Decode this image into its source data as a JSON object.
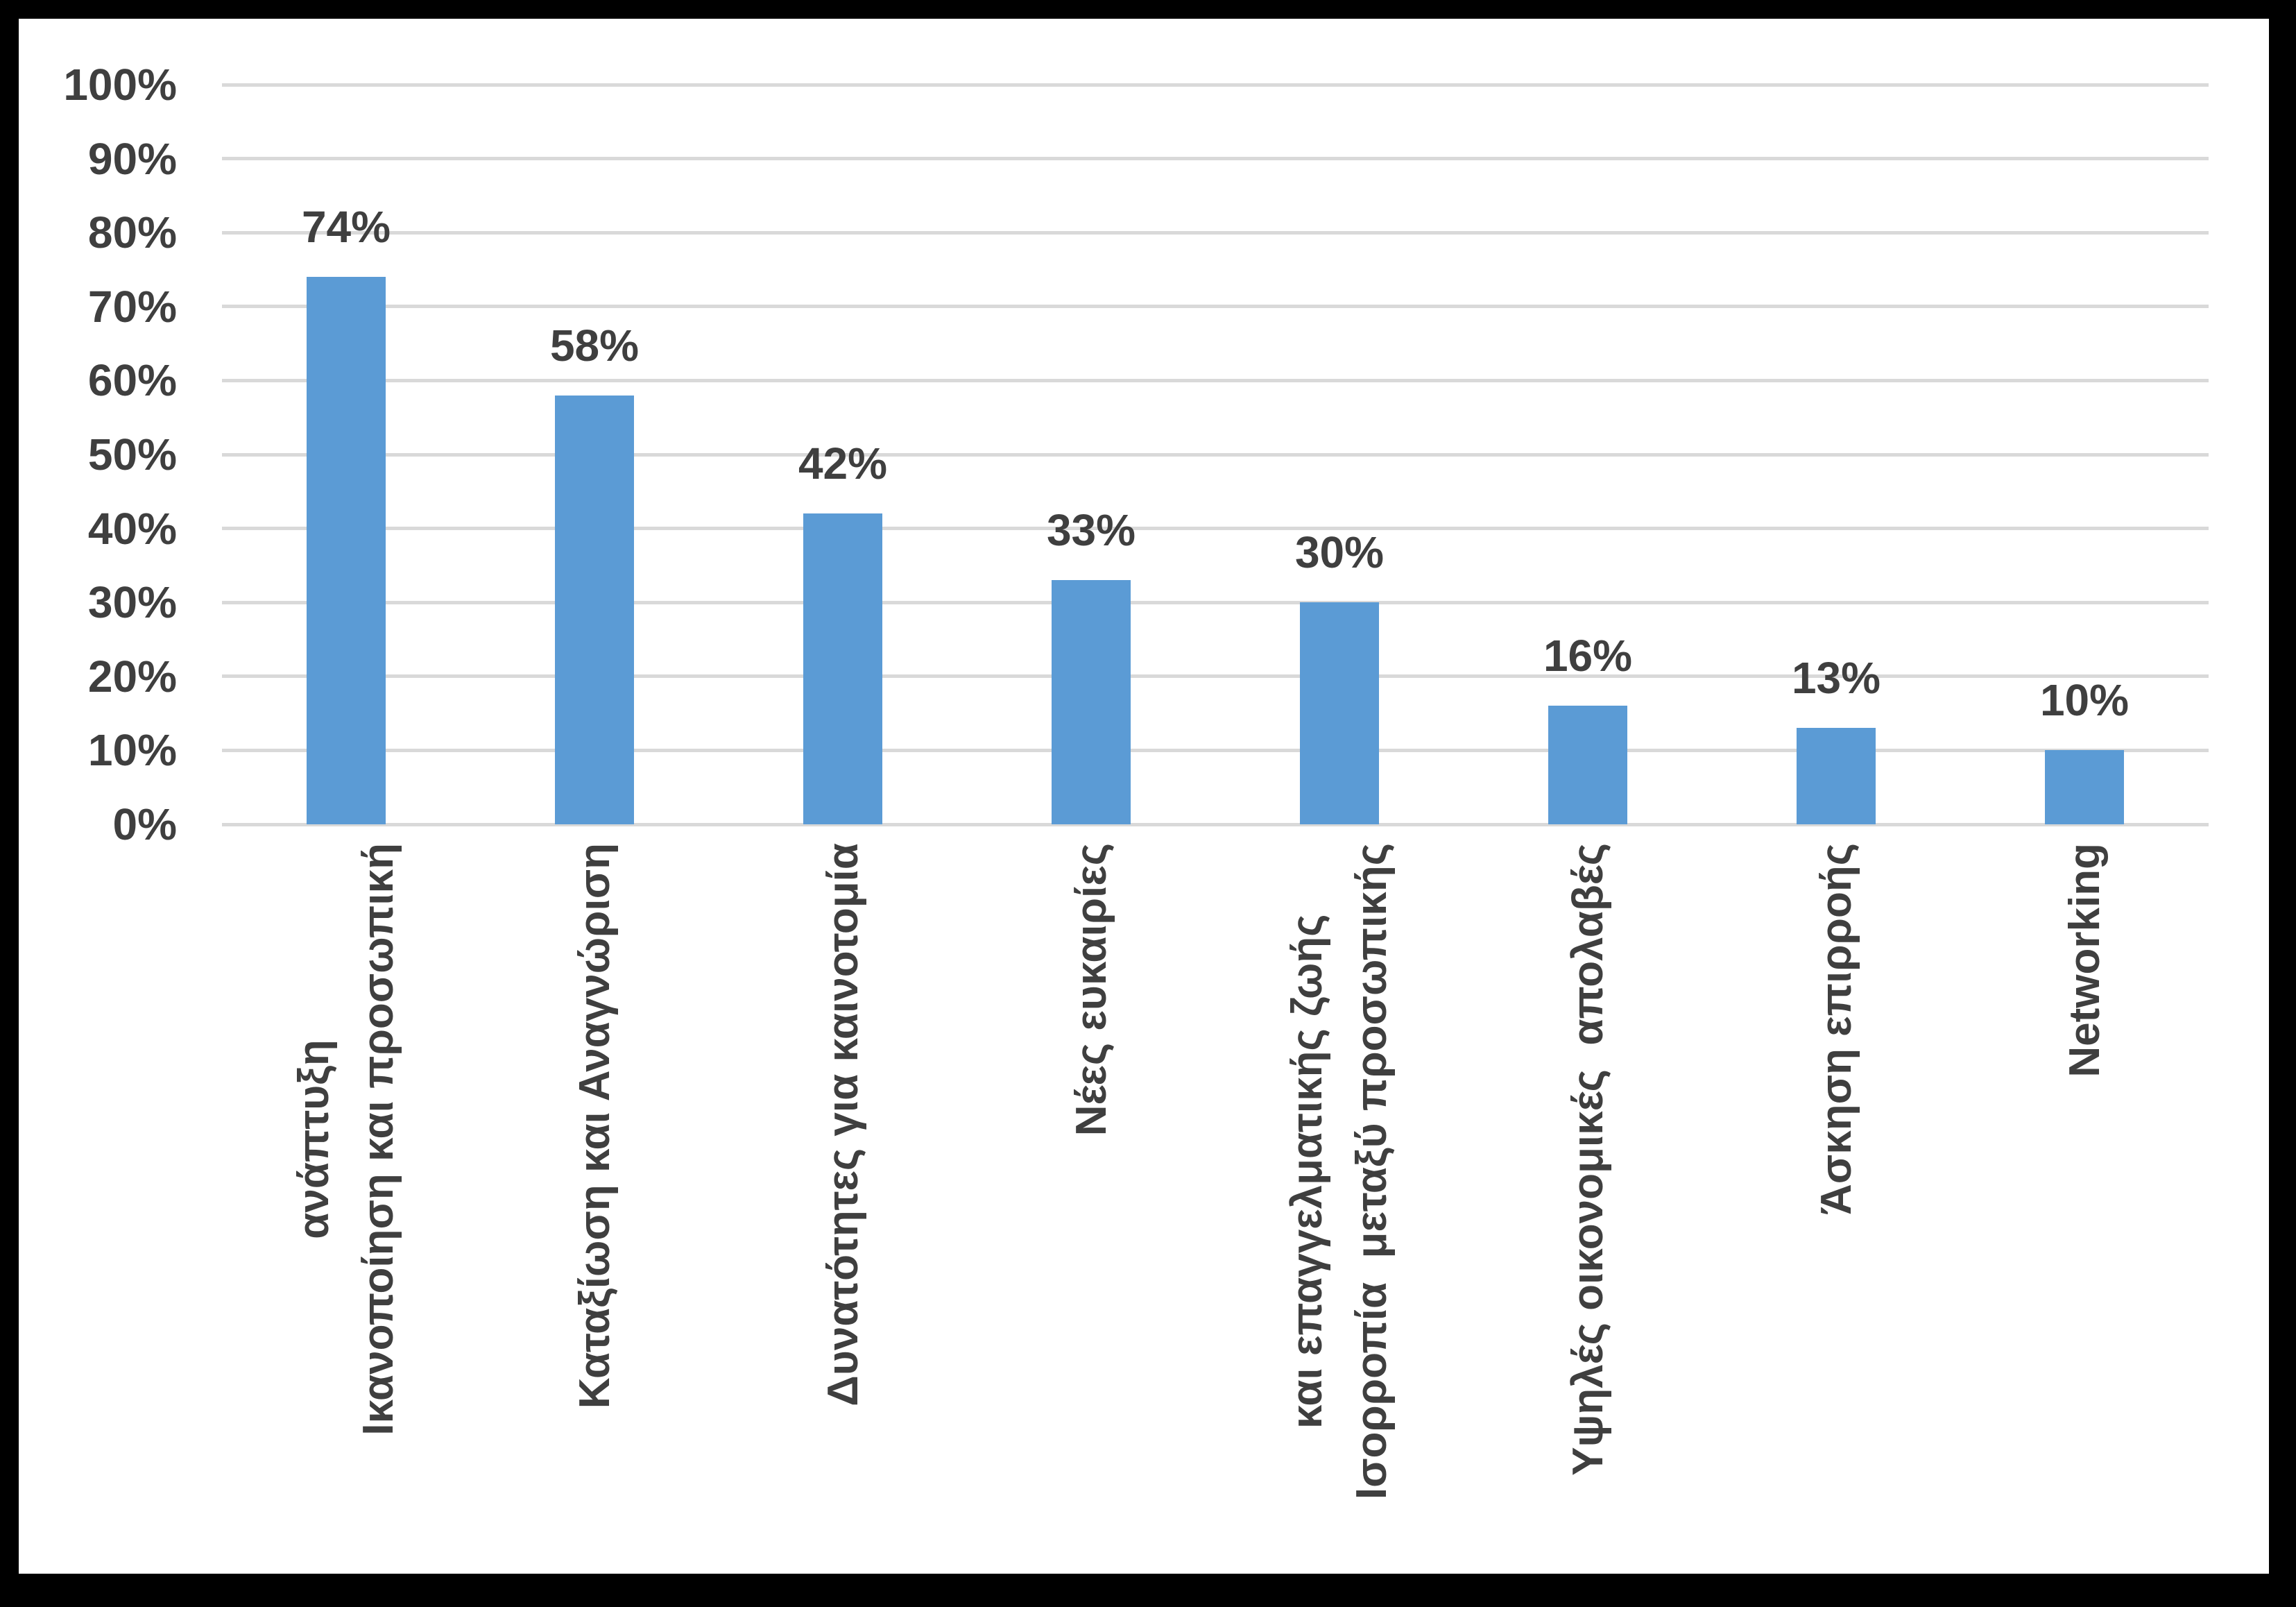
{
  "chart_data": {
    "type": "bar",
    "title": "",
    "categories": [
      [
        "Ικανοποίηση και προσωπική",
        "ανάπτυξη"
      ],
      [
        "Καταξίωση και Αναγνώριση"
      ],
      [
        "Δυνατότητες για καινοτομία"
      ],
      [
        "Νέες ευκαιρίες"
      ],
      [
        "Ισορροπία  μεταξύ προσωπικής",
        "και επαγγελματικής ζωής"
      ],
      [
        "Υψηλές οικονομικές  απολαβές"
      ],
      [
        "Άσκηση επιρροής"
      ],
      [
        "Networking"
      ]
    ],
    "values": [
      74,
      58,
      42,
      33,
      30,
      16,
      13,
      10
    ],
    "value_labels": [
      "74%",
      "58%",
      "42%",
      "33%",
      "30%",
      "16%",
      "13%",
      "10%"
    ],
    "y_ticks": [
      "0%",
      "10%",
      "20%",
      "30%",
      "40%",
      "50%",
      "60%",
      "70%",
      "80%",
      "90%",
      "100%"
    ],
    "ylim": [
      0,
      100
    ],
    "grid": "horizontal",
    "legend": "none",
    "xlabel": "",
    "ylabel": "",
    "colors": {
      "bar": "#5B9BD5",
      "gridline": "#D9D9D9",
      "text": "#3F3F3F",
      "frame": "#000000",
      "background": "#FFFFFF"
    }
  }
}
